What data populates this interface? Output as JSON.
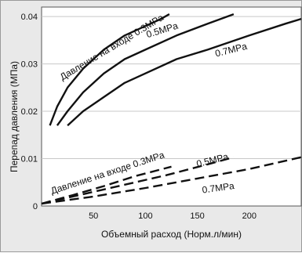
{
  "chart_data": {
    "type": "line",
    "xlabel": "Объемный расход (Норм.л/мин)",
    "ylabel": "Перепад давления (МПа)",
    "xlim": [
      0,
      250
    ],
    "ylim": [
      0,
      0.042
    ],
    "x_ticks": [
      "50",
      "100",
      "150",
      "200"
    ],
    "x_tick_values": [
      50,
      100,
      150,
      200
    ],
    "y_ticks": [
      "0",
      "0.01",
      "0.02",
      "0.03",
      "0.04"
    ],
    "y_tick_values": [
      0,
      0.01,
      0.02,
      0.03,
      0.04
    ],
    "grid": "horizontal",
    "series": [
      {
        "name": "0.3MPa",
        "style": "solid",
        "x": [
          8,
          15,
          25,
          40,
          60,
          80,
          100,
          115,
          123
        ],
        "y": [
          0.017,
          0.021,
          0.025,
          0.029,
          0.033,
          0.036,
          0.038,
          0.0395,
          0.0405
        ]
      },
      {
        "name": "0.5MPa",
        "style": "solid",
        "x": [
          15,
          25,
          40,
          60,
          80,
          100,
          130,
          160,
          185
        ],
        "y": [
          0.017,
          0.02,
          0.024,
          0.028,
          0.031,
          0.033,
          0.036,
          0.0385,
          0.0405
        ]
      },
      {
        "name": "0.7MPa",
        "style": "solid",
        "x": [
          25,
          40,
          60,
          80,
          100,
          130,
          160,
          200,
          235,
          250
        ],
        "y": [
          0.017,
          0.02,
          0.023,
          0.026,
          0.028,
          0.031,
          0.033,
          0.036,
          0.0385,
          0.0395
        ]
      },
      {
        "name": "0.3MPa",
        "style": "dashed",
        "x": [
          0,
          30,
          60,
          90,
          125
        ],
        "y": [
          0.0005,
          0.0023,
          0.0042,
          0.0063,
          0.0083
        ]
      },
      {
        "name": "0.5MPa",
        "style": "dashed",
        "x": [
          0,
          40,
          80,
          120,
          160,
          185
        ],
        "y": [
          0.0005,
          0.0025,
          0.0045,
          0.0065,
          0.0088,
          0.0103
        ]
      },
      {
        "name": "0.7MPa",
        "style": "dashed",
        "x": [
          0,
          50,
          100,
          150,
          200,
          250
        ],
        "y": [
          0.0005,
          0.002,
          0.0038,
          0.0058,
          0.0078,
          0.0103
        ]
      }
    ],
    "annotations": [
      {
        "text": "Давление на входе 0.3MPa",
        "x": 20,
        "y": 0.0265,
        "angle": -31
      },
      {
        "text": "0.5MPa",
        "x": 102,
        "y": 0.0355,
        "angle": -17
      },
      {
        "text": "0.7MPa",
        "x": 168,
        "y": 0.0315,
        "angle": -14
      },
      {
        "text": "Давление на входе 0.3MPa",
        "x": 10,
        "y": 0.0025,
        "angle": -18
      },
      {
        "text": "0.5MPa",
        "x": 150,
        "y": 0.0082,
        "angle": -14
      },
      {
        "text": "0.7MPa",
        "x": 155,
        "y": 0.0027,
        "angle": -8
      }
    ]
  }
}
